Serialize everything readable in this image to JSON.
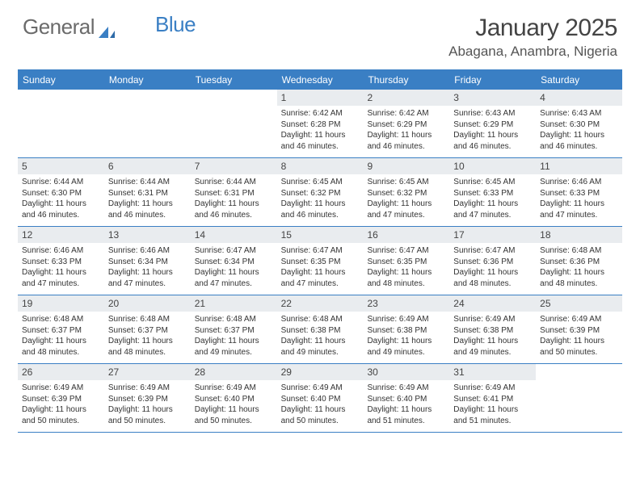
{
  "brand": {
    "part1": "General",
    "part2": "Blue"
  },
  "title": "January 2025",
  "location": "Abagana, Anambra, Nigeria",
  "colors": {
    "accent": "#3a7fc4",
    "header_bg": "#3a7fc4",
    "daynum_bg": "#e9ecef",
    "text": "#333333",
    "background": "#ffffff"
  },
  "day_headers": [
    "Sunday",
    "Monday",
    "Tuesday",
    "Wednesday",
    "Thursday",
    "Friday",
    "Saturday"
  ],
  "weeks": [
    [
      null,
      null,
      null,
      {
        "n": "1",
        "sr": "Sunrise: 6:42 AM",
        "ss": "Sunset: 6:28 PM",
        "dl1": "Daylight: 11 hours",
        "dl2": "and 46 minutes."
      },
      {
        "n": "2",
        "sr": "Sunrise: 6:42 AM",
        "ss": "Sunset: 6:29 PM",
        "dl1": "Daylight: 11 hours",
        "dl2": "and 46 minutes."
      },
      {
        "n": "3",
        "sr": "Sunrise: 6:43 AM",
        "ss": "Sunset: 6:29 PM",
        "dl1": "Daylight: 11 hours",
        "dl2": "and 46 minutes."
      },
      {
        "n": "4",
        "sr": "Sunrise: 6:43 AM",
        "ss": "Sunset: 6:30 PM",
        "dl1": "Daylight: 11 hours",
        "dl2": "and 46 minutes."
      }
    ],
    [
      {
        "n": "5",
        "sr": "Sunrise: 6:44 AM",
        "ss": "Sunset: 6:30 PM",
        "dl1": "Daylight: 11 hours",
        "dl2": "and 46 minutes."
      },
      {
        "n": "6",
        "sr": "Sunrise: 6:44 AM",
        "ss": "Sunset: 6:31 PM",
        "dl1": "Daylight: 11 hours",
        "dl2": "and 46 minutes."
      },
      {
        "n": "7",
        "sr": "Sunrise: 6:44 AM",
        "ss": "Sunset: 6:31 PM",
        "dl1": "Daylight: 11 hours",
        "dl2": "and 46 minutes."
      },
      {
        "n": "8",
        "sr": "Sunrise: 6:45 AM",
        "ss": "Sunset: 6:32 PM",
        "dl1": "Daylight: 11 hours",
        "dl2": "and 46 minutes."
      },
      {
        "n": "9",
        "sr": "Sunrise: 6:45 AM",
        "ss": "Sunset: 6:32 PM",
        "dl1": "Daylight: 11 hours",
        "dl2": "and 47 minutes."
      },
      {
        "n": "10",
        "sr": "Sunrise: 6:45 AM",
        "ss": "Sunset: 6:33 PM",
        "dl1": "Daylight: 11 hours",
        "dl2": "and 47 minutes."
      },
      {
        "n": "11",
        "sr": "Sunrise: 6:46 AM",
        "ss": "Sunset: 6:33 PM",
        "dl1": "Daylight: 11 hours",
        "dl2": "and 47 minutes."
      }
    ],
    [
      {
        "n": "12",
        "sr": "Sunrise: 6:46 AM",
        "ss": "Sunset: 6:33 PM",
        "dl1": "Daylight: 11 hours",
        "dl2": "and 47 minutes."
      },
      {
        "n": "13",
        "sr": "Sunrise: 6:46 AM",
        "ss": "Sunset: 6:34 PM",
        "dl1": "Daylight: 11 hours",
        "dl2": "and 47 minutes."
      },
      {
        "n": "14",
        "sr": "Sunrise: 6:47 AM",
        "ss": "Sunset: 6:34 PM",
        "dl1": "Daylight: 11 hours",
        "dl2": "and 47 minutes."
      },
      {
        "n": "15",
        "sr": "Sunrise: 6:47 AM",
        "ss": "Sunset: 6:35 PM",
        "dl1": "Daylight: 11 hours",
        "dl2": "and 47 minutes."
      },
      {
        "n": "16",
        "sr": "Sunrise: 6:47 AM",
        "ss": "Sunset: 6:35 PM",
        "dl1": "Daylight: 11 hours",
        "dl2": "and 48 minutes."
      },
      {
        "n": "17",
        "sr": "Sunrise: 6:47 AM",
        "ss": "Sunset: 6:36 PM",
        "dl1": "Daylight: 11 hours",
        "dl2": "and 48 minutes."
      },
      {
        "n": "18",
        "sr": "Sunrise: 6:48 AM",
        "ss": "Sunset: 6:36 PM",
        "dl1": "Daylight: 11 hours",
        "dl2": "and 48 minutes."
      }
    ],
    [
      {
        "n": "19",
        "sr": "Sunrise: 6:48 AM",
        "ss": "Sunset: 6:37 PM",
        "dl1": "Daylight: 11 hours",
        "dl2": "and 48 minutes."
      },
      {
        "n": "20",
        "sr": "Sunrise: 6:48 AM",
        "ss": "Sunset: 6:37 PM",
        "dl1": "Daylight: 11 hours",
        "dl2": "and 48 minutes."
      },
      {
        "n": "21",
        "sr": "Sunrise: 6:48 AM",
        "ss": "Sunset: 6:37 PM",
        "dl1": "Daylight: 11 hours",
        "dl2": "and 49 minutes."
      },
      {
        "n": "22",
        "sr": "Sunrise: 6:48 AM",
        "ss": "Sunset: 6:38 PM",
        "dl1": "Daylight: 11 hours",
        "dl2": "and 49 minutes."
      },
      {
        "n": "23",
        "sr": "Sunrise: 6:49 AM",
        "ss": "Sunset: 6:38 PM",
        "dl1": "Daylight: 11 hours",
        "dl2": "and 49 minutes."
      },
      {
        "n": "24",
        "sr": "Sunrise: 6:49 AM",
        "ss": "Sunset: 6:38 PM",
        "dl1": "Daylight: 11 hours",
        "dl2": "and 49 minutes."
      },
      {
        "n": "25",
        "sr": "Sunrise: 6:49 AM",
        "ss": "Sunset: 6:39 PM",
        "dl1": "Daylight: 11 hours",
        "dl2": "and 50 minutes."
      }
    ],
    [
      {
        "n": "26",
        "sr": "Sunrise: 6:49 AM",
        "ss": "Sunset: 6:39 PM",
        "dl1": "Daylight: 11 hours",
        "dl2": "and 50 minutes."
      },
      {
        "n": "27",
        "sr": "Sunrise: 6:49 AM",
        "ss": "Sunset: 6:39 PM",
        "dl1": "Daylight: 11 hours",
        "dl2": "and 50 minutes."
      },
      {
        "n": "28",
        "sr": "Sunrise: 6:49 AM",
        "ss": "Sunset: 6:40 PM",
        "dl1": "Daylight: 11 hours",
        "dl2": "and 50 minutes."
      },
      {
        "n": "29",
        "sr": "Sunrise: 6:49 AM",
        "ss": "Sunset: 6:40 PM",
        "dl1": "Daylight: 11 hours",
        "dl2": "and 50 minutes."
      },
      {
        "n": "30",
        "sr": "Sunrise: 6:49 AM",
        "ss": "Sunset: 6:40 PM",
        "dl1": "Daylight: 11 hours",
        "dl2": "and 51 minutes."
      },
      {
        "n": "31",
        "sr": "Sunrise: 6:49 AM",
        "ss": "Sunset: 6:41 PM",
        "dl1": "Daylight: 11 hours",
        "dl2": "and 51 minutes."
      },
      null
    ]
  ]
}
